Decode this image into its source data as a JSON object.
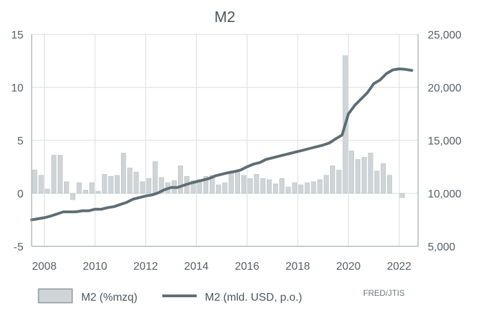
{
  "chart_data": {
    "type": "bar+line",
    "title": "M2",
    "source": "FRED/JTIS",
    "colors": {
      "bar_fill": "#cfd4d6",
      "bar_stroke": "#b9bfc2",
      "line": "#5e6d74",
      "grid": "#d9dcde",
      "text": "#555f66"
    },
    "x_axis": {
      "range": [
        2007.5,
        2022.75
      ],
      "ticks": [
        2008,
        2010,
        2012,
        2014,
        2016,
        2018,
        2020,
        2022
      ],
      "tick_labels": [
        "2008",
        "2010",
        "2012",
        "2014",
        "2016",
        "2018",
        "2020",
        "2022"
      ]
    },
    "y_left": {
      "range": [
        -5,
        15
      ],
      "ticks": [
        -5,
        0,
        5,
        10,
        15
      ],
      "tick_labels": [
        "-5",
        "0",
        "5",
        "10",
        "15"
      ]
    },
    "y_right": {
      "range": [
        5000,
        25000
      ],
      "ticks": [
        5000,
        10000,
        15000,
        20000,
        25000
      ],
      "tick_labels": [
        "5,000",
        "10,000",
        "15,000",
        "20,000",
        "25,000"
      ]
    },
    "grid": true,
    "legend_position": "bottom",
    "series": [
      {
        "name": "M2 (%mzq)",
        "type": "bar",
        "axis": "left",
        "x": [
          2007.625,
          2007.875,
          2008.125,
          2008.375,
          2008.625,
          2008.875,
          2009.125,
          2009.375,
          2009.625,
          2009.875,
          2010.125,
          2010.375,
          2010.625,
          2010.875,
          2011.125,
          2011.375,
          2011.625,
          2011.875,
          2012.125,
          2012.375,
          2012.625,
          2012.875,
          2013.125,
          2013.375,
          2013.625,
          2013.875,
          2014.125,
          2014.375,
          2014.625,
          2014.875,
          2015.125,
          2015.375,
          2015.625,
          2015.875,
          2016.125,
          2016.375,
          2016.625,
          2016.875,
          2017.125,
          2017.375,
          2017.625,
          2017.875,
          2018.125,
          2018.375,
          2018.625,
          2018.875,
          2019.125,
          2019.375,
          2019.625,
          2019.875,
          2020.125,
          2020.375,
          2020.625,
          2020.875,
          2021.125,
          2021.375,
          2021.625,
          2021.875,
          2022.125,
          2022.375
        ],
        "values": [
          2.2,
          1.7,
          0.4,
          3.6,
          3.6,
          1.1,
          -0.6,
          1.0,
          0.3,
          1.0,
          0.2,
          1.8,
          1.6,
          1.7,
          3.8,
          2.4,
          2.0,
          1.1,
          1.4,
          3.0,
          1.5,
          1.0,
          1.2,
          2.6,
          1.6,
          1.2,
          1.3,
          1.6,
          1.7,
          0.8,
          1.0,
          1.9,
          2.1,
          1.7,
          1.4,
          1.8,
          1.4,
          1.3,
          0.9,
          1.4,
          0.6,
          1.0,
          0.8,
          1.0,
          1.1,
          1.3,
          1.7,
          2.6,
          2.2,
          13.0,
          4.0,
          3.2,
          3.4,
          3.8,
          2.1,
          2.8,
          1.7,
          0.0,
          -0.4,
          0.0
        ]
      },
      {
        "name": "M2 (mld. USD, p.o.)",
        "type": "line",
        "axis": "right",
        "x": [
          2007.5,
          2007.75,
          2008.0,
          2008.25,
          2008.5,
          2008.75,
          2009.0,
          2009.25,
          2009.5,
          2009.75,
          2010.0,
          2010.25,
          2010.5,
          2010.75,
          2011.0,
          2011.25,
          2011.5,
          2011.75,
          2012.0,
          2012.25,
          2012.5,
          2012.75,
          2013.0,
          2013.25,
          2013.5,
          2013.75,
          2014.0,
          2014.25,
          2014.5,
          2014.75,
          2015.0,
          2015.25,
          2015.5,
          2015.75,
          2016.0,
          2016.25,
          2016.5,
          2016.75,
          2017.0,
          2017.25,
          2017.5,
          2017.75,
          2018.0,
          2018.25,
          2018.5,
          2018.75,
          2019.0,
          2019.25,
          2019.5,
          2019.75,
          2020.0,
          2020.25,
          2020.5,
          2020.75,
          2021.0,
          2021.25,
          2021.5,
          2021.75,
          2022.0,
          2022.25,
          2022.5
        ],
        "values": [
          7500,
          7600,
          7700,
          7850,
          8050,
          8250,
          8250,
          8250,
          8350,
          8350,
          8500,
          8500,
          8650,
          8750,
          8950,
          9150,
          9450,
          9600,
          9750,
          9850,
          10050,
          10350,
          10550,
          10550,
          10750,
          10950,
          11100,
          11250,
          11400,
          11650,
          11800,
          11950,
          12050,
          12200,
          12500,
          12750,
          12900,
          13200,
          13350,
          13500,
          13650,
          13800,
          13950,
          14100,
          14250,
          14400,
          14550,
          14750,
          15150,
          15500,
          17500,
          18300,
          18900,
          19500,
          20350,
          20700,
          21300,
          21650,
          21750,
          21700,
          21600
        ]
      }
    ]
  },
  "legend": {
    "bar_label": "M2 (%mzq)",
    "line_label": "M2 (mld. USD, p.o.)"
  }
}
